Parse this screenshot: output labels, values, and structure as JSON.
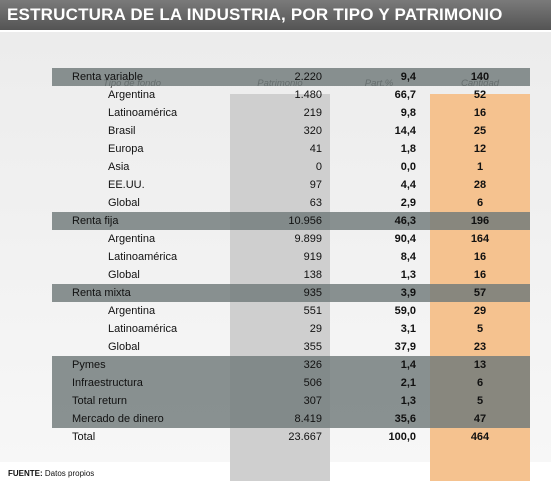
{
  "title": "ESTRUCTURA DE LA INDUSTRIA, POR TIPO Y PATRIMONIO",
  "headers": {
    "tipo": "Tipo de fondo",
    "patrimonio": "Patrimonio",
    "part": "Part.%",
    "cantidad": "Cantidad"
  },
  "rows": [
    {
      "name": "Renta variable",
      "patrimonio": "2.220",
      "part": "9,4",
      "cantidad": "140",
      "kind": "group"
    },
    {
      "name": "Argentina",
      "patrimonio": "1.480",
      "part": "66,7",
      "cantidad": "52",
      "kind": "sub"
    },
    {
      "name": "Latinoamérica",
      "patrimonio": "219",
      "part": "9,8",
      "cantidad": "16",
      "kind": "sub"
    },
    {
      "name": "Brasil",
      "patrimonio": "320",
      "part": "14,4",
      "cantidad": "25",
      "kind": "sub"
    },
    {
      "name": "Europa",
      "patrimonio": "41",
      "part": "1,8",
      "cantidad": "12",
      "kind": "sub"
    },
    {
      "name": "Asia",
      "patrimonio": "0",
      "part": "0,0",
      "cantidad": "1",
      "kind": "sub"
    },
    {
      "name": "EE.UU.",
      "patrimonio": "97",
      "part": "4,4",
      "cantidad": "28",
      "kind": "sub"
    },
    {
      "name": "Global",
      "patrimonio": "63",
      "part": "2,9",
      "cantidad": "6",
      "kind": "sub"
    },
    {
      "name": "Renta fija",
      "patrimonio": "10.956",
      "part": "46,3",
      "cantidad": "196",
      "kind": "group"
    },
    {
      "name": "Argentina",
      "patrimonio": "9.899",
      "part": "90,4",
      "cantidad": "164",
      "kind": "sub"
    },
    {
      "name": "Latinoamérica",
      "patrimonio": "919",
      "part": "8,4",
      "cantidad": "16",
      "kind": "sub"
    },
    {
      "name": "Global",
      "patrimonio": "138",
      "part": "1,3",
      "cantidad": "16",
      "kind": "sub"
    },
    {
      "name": "Renta mixta",
      "patrimonio": "935",
      "part": "3,9",
      "cantidad": "57",
      "kind": "group"
    },
    {
      "name": "Argentina",
      "patrimonio": "551",
      "part": "59,0",
      "cantidad": "29",
      "kind": "sub"
    },
    {
      "name": "Latinoamérica",
      "patrimonio": "29",
      "part": "3,1",
      "cantidad": "5",
      "kind": "sub"
    },
    {
      "name": "Global",
      "patrimonio": "355",
      "part": "37,9",
      "cantidad": "23",
      "kind": "sub"
    },
    {
      "name": "Pymes",
      "patrimonio": "326",
      "part": "1,4",
      "cantidad": "13",
      "kind": "group"
    },
    {
      "name": "Infraestructura",
      "patrimonio": "506",
      "part": "2,1",
      "cantidad": "6",
      "kind": "group"
    },
    {
      "name": "Total return",
      "patrimonio": "307",
      "part": "1,3",
      "cantidad": "5",
      "kind": "group"
    },
    {
      "name": "Mercado de dinero",
      "patrimonio": "8.419",
      "part": "35,6",
      "cantidad": "47",
      "kind": "group"
    },
    {
      "name": "Total",
      "patrimonio": "23.667",
      "part": "100,0",
      "cantidad": "464",
      "kind": "total"
    }
  ],
  "footer": {
    "label": "FUENTE:",
    "text": "Datos propios"
  },
  "colors": {
    "title_bg": "#616161",
    "group_row": "#707a7a",
    "patrimonio_col": "#cfcfcf",
    "cantidad_col": "#f5c28f"
  }
}
